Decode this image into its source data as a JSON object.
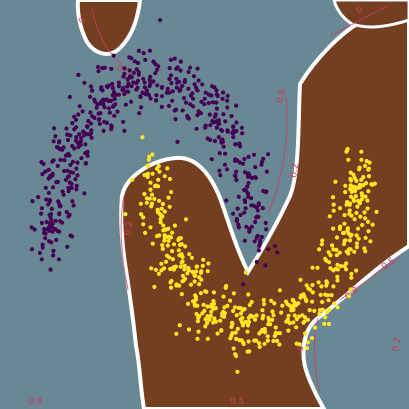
{
  "chart_data": {
    "type": "scatter",
    "title": "",
    "xlabel": "",
    "ylabel": "",
    "xlim": [
      -1.5,
      2.5
    ],
    "ylim": [
      -1.0,
      1.5
    ],
    "grid": false,
    "legend": "none",
    "decision_regions": {
      "class0_color": "#6a8794",
      "class1_color": "#733f20",
      "boundary_color": "#ffffff",
      "contour_color": "#cc3b5c"
    },
    "series": [
      {
        "label": 0,
        "color": "#440154",
        "count": 500,
        "shape": "upper-moon",
        "center": [
          0.0,
          0.0
        ],
        "radius": 1.0,
        "noise": 0.1
      },
      {
        "label": 1,
        "color": "#fde725",
        "count": 500,
        "shape": "lower-moon",
        "center": [
          1.0,
          0.5
        ],
        "radius": 1.0,
        "noise": 0.1
      }
    ],
    "contour_labels": [
      "0",
      "0.5",
      "0.8",
      "0.2"
    ]
  }
}
